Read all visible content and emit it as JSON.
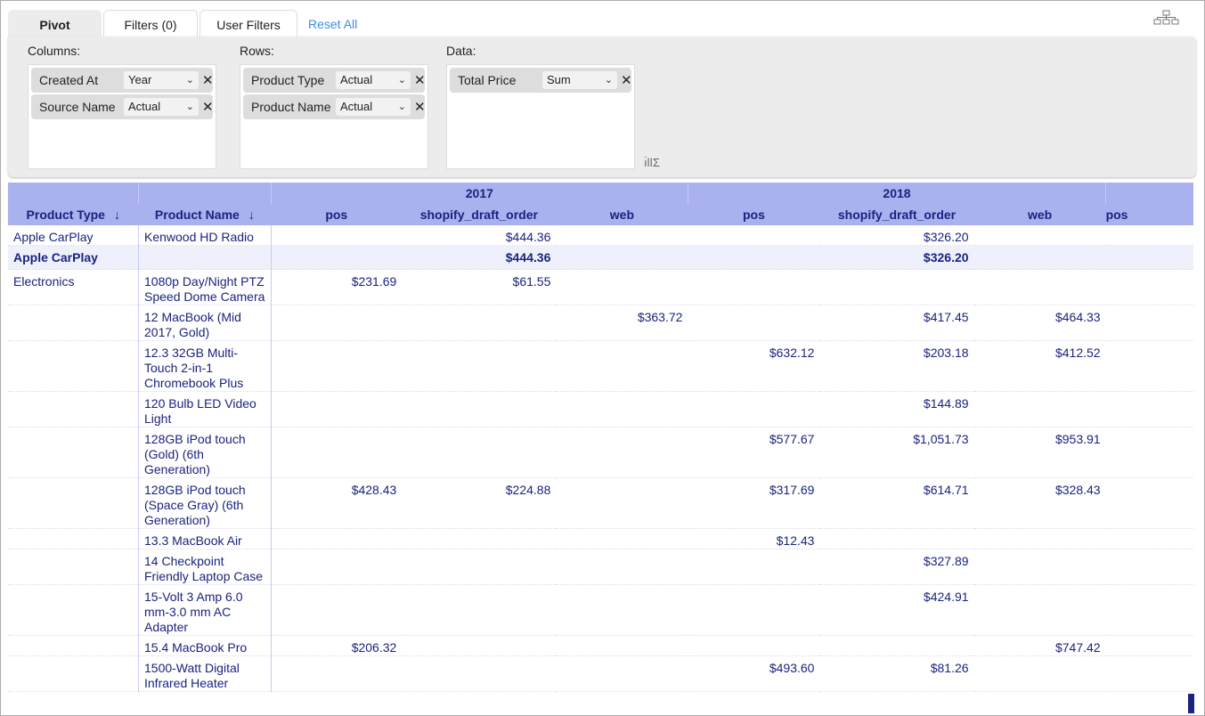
{
  "tabs": {
    "pivot": "Pivot",
    "filters": "Filters (0)",
    "user_filters": "User Filters",
    "reset_all": "Reset All"
  },
  "panel": {
    "columns": {
      "label": "Columns:",
      "fields": [
        {
          "name": "Created At",
          "mode": "Year"
        },
        {
          "name": "Source Name",
          "mode": "Actual"
        }
      ]
    },
    "rows": {
      "label": "Rows:",
      "fields": [
        {
          "name": "Product Type",
          "mode": "Actual"
        },
        {
          "name": "Product Name",
          "mode": "Actual"
        }
      ]
    },
    "data": {
      "label": "Data:",
      "fields": [
        {
          "name": "Total Price",
          "mode": "Sum"
        }
      ]
    },
    "remove_glyph": "✕",
    "chevron_glyph": "⌄"
  },
  "table": {
    "headers": {
      "product_type": "Product Type",
      "product_name": "Product Name",
      "sort_glyph": "↓",
      "years": [
        "2017",
        "2018"
      ],
      "sources": [
        "pos",
        "shopify_draft_order",
        "web",
        "pos",
        "shopify_draft_order",
        "web",
        "pos"
      ]
    },
    "rows": [
      {
        "type": "Apple CarPlay",
        "name": "Kenwood HD Radio",
        "values": [
          "",
          "$444.36",
          "",
          "",
          "$326.20",
          "",
          ""
        ]
      },
      {
        "type": "Apple CarPlay",
        "name": "",
        "values": [
          "",
          "$444.36",
          "",
          "",
          "$326.20",
          "",
          ""
        ],
        "total": true
      },
      {
        "type": "Electronics",
        "name": "1080p Day/Night PTZ Speed Dome Camera",
        "values": [
          "$231.69",
          "$61.55",
          "",
          "",
          "",
          "",
          ""
        ]
      },
      {
        "type": "",
        "name": "12 MacBook (Mid 2017, Gold)",
        "values": [
          "",
          "",
          "$363.72",
          "",
          "$417.45",
          "$464.33",
          ""
        ]
      },
      {
        "type": "",
        "name": "12.3 32GB Multi-Touch 2-in-1 Chromebook Plus",
        "values": [
          "",
          "",
          "",
          "$632.12",
          "$203.18",
          "$412.52",
          ""
        ]
      },
      {
        "type": "",
        "name": "120 Bulb LED Video Light",
        "values": [
          "",
          "",
          "",
          "",
          "$144.89",
          "",
          ""
        ]
      },
      {
        "type": "",
        "name": "128GB iPod touch (Gold) (6th Generation)",
        "values": [
          "",
          "",
          "",
          "$577.67",
          "$1,051.73",
          "$953.91",
          ""
        ]
      },
      {
        "type": "",
        "name": "128GB iPod touch (Space Gray) (6th Generation)",
        "values": [
          "$428.43",
          "$224.88",
          "",
          "$317.69",
          "$614.71",
          "$328.43",
          ""
        ]
      },
      {
        "type": "",
        "name": "13.3 MacBook Air",
        "values": [
          "",
          "",
          "",
          "$12.43",
          "",
          "",
          ""
        ]
      },
      {
        "type": "",
        "name": "14 Checkpoint Friendly Laptop Case",
        "values": [
          "",
          "",
          "",
          "",
          "$327.89",
          "",
          ""
        ]
      },
      {
        "type": "",
        "name": "15-Volt 3 Amp 6.0 mm-3.0 mm AC Adapter",
        "values": [
          "",
          "",
          "",
          "",
          "$424.91",
          "",
          ""
        ]
      },
      {
        "type": "",
        "name": "15.4 MacBook Pro",
        "values": [
          "$206.32",
          "",
          "",
          "",
          "",
          "$747.42",
          ""
        ]
      },
      {
        "type": "",
        "name": "1500-Watt Digital Infrared Heater",
        "values": [
          "",
          "",
          "",
          "$493.60",
          "$81.26",
          "",
          ""
        ]
      }
    ]
  }
}
